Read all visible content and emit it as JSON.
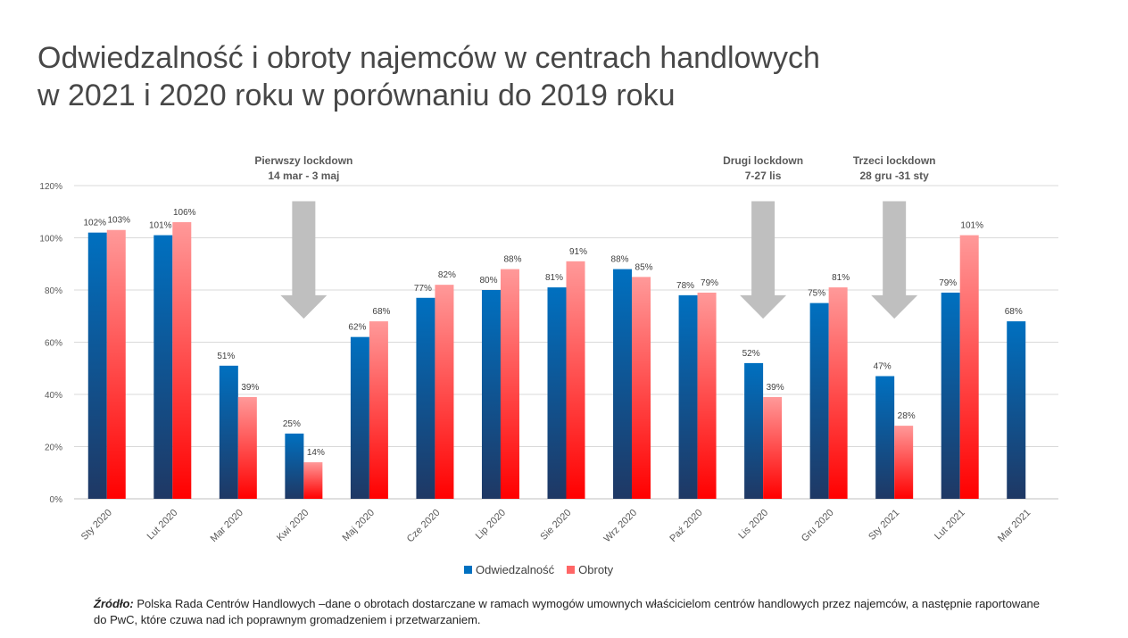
{
  "title_lines": [
    "Odwiedzalność i obroty najemców w centrach handlowych",
    "w 2021 i 2020 roku w porównaniu do 2019 roku"
  ],
  "chart_data": {
    "type": "bar",
    "categories": [
      "Sty 2020",
      "Lut 2020",
      "Mar 2020",
      "Kwi 2020",
      "Maj 2020",
      "Cze 2020",
      "Lip 2020",
      "Sie 2020",
      "Wrz 2020",
      "Paź 2020",
      "Lis 2020",
      "Gru 2020",
      "Sty 2021",
      "Lut 2021",
      "Mar 2021"
    ],
    "series": [
      {
        "name": "Odwiedzalność",
        "values": [
          102,
          101,
          51,
          25,
          62,
          77,
          80,
          81,
          88,
          78,
          52,
          75,
          47,
          79,
          68
        ],
        "labels": [
          "102%",
          "101%",
          "51%",
          "25%",
          "62%",
          "77%",
          "80%",
          "81%",
          "88%",
          "78%",
          "52%",
          "75%",
          "47%",
          "79%",
          "68%"
        ],
        "color_top": "#0070C0",
        "color_bottom": "#1F3864"
      },
      {
        "name": "Obroty",
        "values": [
          103,
          106,
          39,
          14,
          68,
          82,
          88,
          91,
          85,
          79,
          39,
          81,
          28,
          101,
          null
        ],
        "labels": [
          "103%",
          "106%",
          "39%",
          "14%",
          "68%",
          "82%",
          "88%",
          "91%",
          "85%",
          "79%",
          "39%",
          "81%",
          "28%",
          "101%",
          ""
        ],
        "color_top": "#FF9999",
        "color_bottom": "#FF0000"
      }
    ],
    "ylim": [
      0,
      120
    ],
    "yticks": [
      0,
      20,
      40,
      60,
      80,
      100,
      120
    ],
    "ytick_labels": [
      "0%",
      "20%",
      "40%",
      "60%",
      "80%",
      "100%",
      "120%"
    ],
    "grid": true,
    "legend_position": "bottom-center",
    "annotations": [
      {
        "lines": [
          "Pierwszy lockdown",
          "14 mar - 3 maj"
        ],
        "category_index": 3
      },
      {
        "lines": [
          "Drugi lockdown",
          "7-27 lis"
        ],
        "category_index": 10
      },
      {
        "lines": [
          "Trzeci lockdown",
          "28 gru -31 sty"
        ],
        "category_index": 12
      }
    ],
    "annotation_arrow_color": "#BFBFBF"
  },
  "legend": {
    "items": [
      "Odwiedzalność",
      "Obroty"
    ],
    "colors": [
      "#0070C0",
      "#FF6666"
    ]
  },
  "source": {
    "label": "Źródło:",
    "text": " Polska Rada Centrów Handlowych –dane o obrotach dostarczane w ramach wymogów umownych właścicielom centrów handlowych przez najemców, a następnie raportowane do PwC, które czuwa nad ich poprawnym gromadzeniem i przetwarzaniem."
  }
}
